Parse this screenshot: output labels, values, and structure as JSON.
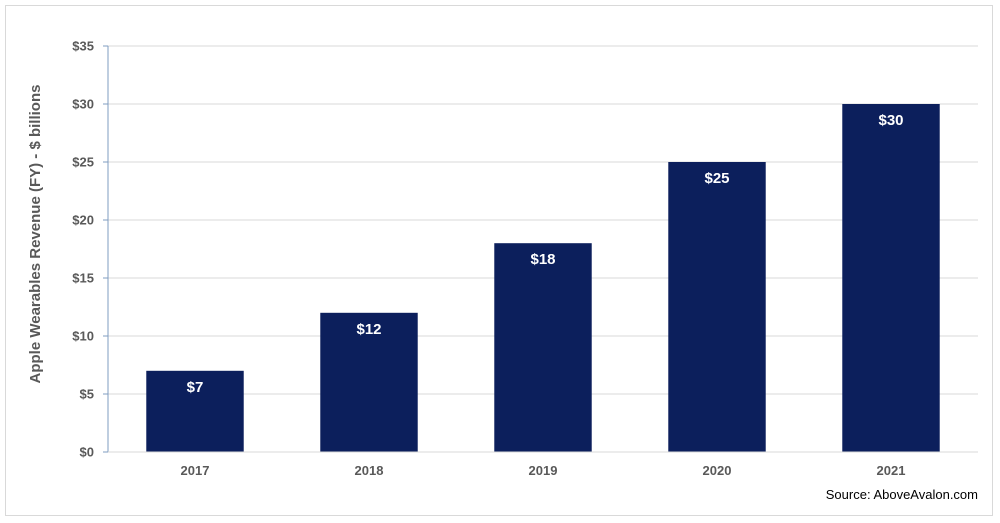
{
  "chart_data": {
    "type": "bar",
    "categories": [
      "2017",
      "2018",
      "2019",
      "2020",
      "2021"
    ],
    "values": [
      7,
      12,
      18,
      25,
      30
    ],
    "data_labels": [
      "$7",
      "$12",
      "$18",
      "$25",
      "$30"
    ],
    "title": "",
    "xlabel": "",
    "ylabel": "Apple Wearables Revenue (FY) - $ billions",
    "ylim": [
      0,
      35
    ],
    "yticks": [
      0,
      5,
      10,
      15,
      20,
      25,
      30,
      35
    ],
    "ytick_labels": [
      "$0",
      "$5",
      "$10",
      "$15",
      "$20",
      "$25",
      "$30",
      "$35"
    ],
    "grid": "horizontal",
    "legend": "none",
    "bar_color": "#0c1f5c",
    "grid_color": "#d9d9d9",
    "axis_color": "#7f9cc0"
  },
  "source_text": "Source: AboveAvalon.com"
}
